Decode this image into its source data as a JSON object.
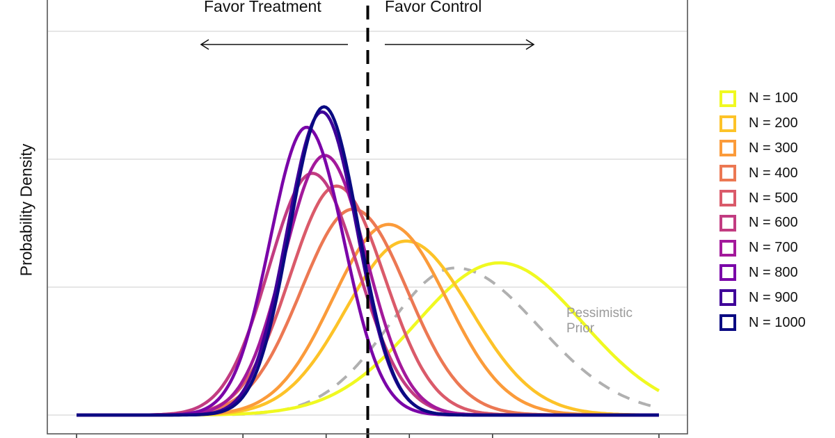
{
  "chart_data": {
    "type": "line",
    "title": "",
    "xlabel": "",
    "ylabel": "Probability Density",
    "xlim": [
      -7,
      7
    ],
    "ylim": [
      0,
      2.6
    ],
    "grid": true,
    "x_ticks": [
      -7,
      -3,
      -1,
      0,
      1,
      3,
      7
    ],
    "x_tick_labels": [],
    "y_tick_labels": [],
    "y_gridlines": [
      0,
      1,
      2,
      3
    ],
    "reference_line": {
      "x": 0,
      "style": "dashed",
      "color": "#000000"
    },
    "annotations": {
      "left": "Favor Treatment",
      "right": "Favor Control",
      "prior_label_line1": "Pessimistic",
      "prior_label_line2": "Prior"
    },
    "legend_position": "right",
    "prior": {
      "name": "Pessimistic Prior",
      "color": "#b0b0b0",
      "style": "dashed",
      "peak_x": 2.1,
      "peak_density": 1.15,
      "sd_left": 1.6,
      "sd_right": 2.0
    },
    "series": [
      {
        "name": "N = 100",
        "color": "#f0f921",
        "peak_x": 3.17,
        "peak_density": 1.19,
        "sd_left": 2.0,
        "sd_right": 2.0
      },
      {
        "name": "N = 200",
        "color": "#fdc328",
        "peak_x": 0.92,
        "peak_density": 1.36,
        "sd_left": 1.45,
        "sd_right": 1.55
      },
      {
        "name": "N = 300",
        "color": "#fb9b3a",
        "peak_x": 0.5,
        "peak_density": 1.49,
        "sd_left": 1.35,
        "sd_right": 1.4
      },
      {
        "name": "N = 400",
        "color": "#ec7853",
        "peak_x": -0.35,
        "peak_density": 1.61,
        "sd_left": 1.25,
        "sd_right": 1.3
      },
      {
        "name": "N = 500",
        "color": "#da5a6a",
        "peak_x": -0.75,
        "peak_density": 1.79,
        "sd_left": 1.12,
        "sd_right": 1.15
      },
      {
        "name": "N = 600",
        "color": "#c23c81",
        "peak_x": -1.33,
        "peak_density": 1.89,
        "sd_left": 1.05,
        "sd_right": 1.1
      },
      {
        "name": "N = 700",
        "color": "#a3199b",
        "peak_x": -1.03,
        "peak_density": 2.03,
        "sd_left": 0.98,
        "sd_right": 1.0
      },
      {
        "name": "N = 800",
        "color": "#7a04a8",
        "peak_x": -1.47,
        "peak_density": 2.25,
        "sd_left": 0.88,
        "sd_right": 0.9
      },
      {
        "name": "N = 900",
        "color": "#3f0199",
        "peak_x": -1.1,
        "peak_density": 2.37,
        "sd_left": 0.84,
        "sd_right": 0.85
      },
      {
        "name": "N = 1000",
        "color": "#0a0a82",
        "peak_x": -1.05,
        "peak_density": 2.41,
        "sd_left": 0.82,
        "sd_right": 0.83
      }
    ]
  }
}
